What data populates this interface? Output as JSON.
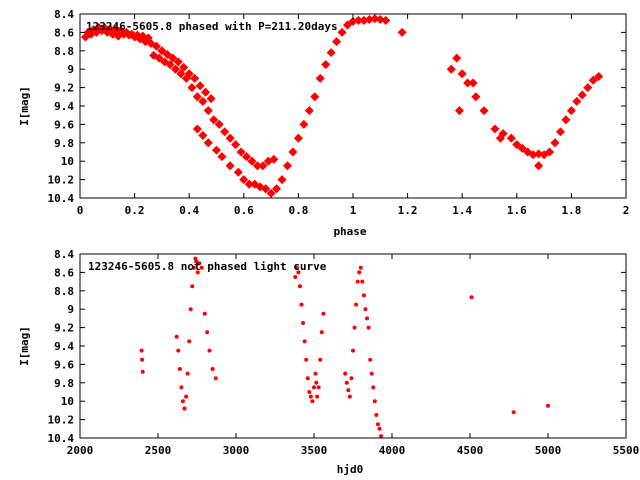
{
  "chart_data": [
    {
      "type": "scatter",
      "title": "123246-5605.8 phased with P=211.20days",
      "xlabel": "phase",
      "ylabel": "I[mag]",
      "xlim": [
        0,
        2
      ],
      "ylim": [
        10.4,
        8.4
      ],
      "y_inverted": true,
      "x_ticks": [
        0,
        0.2,
        0.4,
        0.6,
        0.8,
        1,
        1.2,
        1.4,
        1.6,
        1.8,
        2
      ],
      "x_tick_labels": [
        "0",
        "0.2",
        "0.4",
        "0.6",
        "0.8",
        "1",
        "1.2",
        "1.4",
        "1.6",
        "1.8",
        "2"
      ],
      "y_ticks": [
        8.4,
        8.6,
        8.8,
        9,
        9.2,
        9.4,
        9.6,
        9.8,
        10,
        10.2,
        10.4
      ],
      "y_tick_labels": [
        "8.4",
        "8.6",
        "8.8",
        "9",
        "9.2",
        "9.4",
        "9.6",
        "9.8",
        "10",
        "10.2",
        "10.4"
      ],
      "marker_color": "#ff0000",
      "series": [
        {
          "x": [
            0.02,
            0.03,
            0.05,
            0.07,
            0.09,
            0.11,
            0.13,
            0.15,
            0.17,
            0.19,
            0.21,
            0.23,
            0.25,
            0.04,
            0.06,
            0.08,
            0.1,
            0.12,
            0.14,
            0.16,
            0.18,
            0.2,
            0.22,
            0.24,
            0.26,
            0.28,
            0.3,
            0.32,
            0.34,
            0.36,
            0.38,
            0.4,
            0.42,
            0.44,
            0.46,
            0.48,
            0.27,
            0.29,
            0.31,
            0.33,
            0.35,
            0.37,
            0.39,
            0.41,
            0.43,
            0.45,
            0.47,
            0.49,
            0.51,
            0.53,
            0.55,
            0.57,
            0.59,
            0.61,
            0.63,
            0.65,
            0.67,
            0.69,
            0.71,
            0.43,
            0.45,
            0.47,
            0.5,
            0.52,
            0.55,
            0.58,
            0.6,
            0.62,
            0.64,
            0.66,
            0.68,
            0.7,
            0.72,
            0.74,
            0.76,
            0.78,
            0.8,
            0.82,
            0.84,
            0.86,
            0.88,
            0.9,
            0.92,
            0.94,
            0.96,
            0.98,
            1.0,
            1.02,
            1.04,
            1.06,
            1.08,
            1.1,
            1.12,
            1.18,
            1.36,
            1.38,
            1.4,
            1.42,
            1.45,
            1.48,
            1.52,
            1.55,
            1.58,
            1.6,
            1.62,
            1.64,
            1.66,
            1.68,
            1.7,
            1.72,
            1.74,
            1.76,
            1.78,
            1.8,
            1.82,
            1.84,
            1.86,
            1.88,
            1.9,
            1.39,
            1.44,
            1.54,
            1.68
          ],
          "y": [
            8.65,
            8.6,
            8.57,
            8.55,
            8.55,
            8.56,
            8.57,
            8.58,
            8.6,
            8.62,
            8.63,
            8.64,
            8.66,
            8.62,
            8.6,
            8.58,
            8.6,
            8.62,
            8.64,
            8.62,
            8.63,
            8.65,
            8.67,
            8.7,
            8.72,
            8.75,
            8.8,
            8.84,
            8.88,
            8.92,
            8.98,
            9.05,
            9.1,
            9.18,
            9.25,
            9.32,
            8.85,
            8.88,
            8.92,
            8.95,
            9.0,
            9.05,
            9.1,
            9.2,
            9.3,
            9.35,
            9.45,
            9.55,
            9.6,
            9.68,
            9.75,
            9.82,
            9.9,
            9.95,
            10.0,
            10.05,
            10.05,
            10.0,
            9.98,
            9.65,
            9.72,
            9.8,
            9.88,
            9.95,
            10.05,
            10.12,
            10.2,
            10.25,
            10.25,
            10.28,
            10.3,
            10.35,
            10.3,
            10.2,
            10.05,
            9.9,
            9.75,
            9.6,
            9.45,
            9.3,
            9.1,
            8.95,
            8.82,
            8.7,
            8.6,
            8.52,
            8.48,
            8.47,
            8.47,
            8.46,
            8.45,
            8.46,
            8.47,
            8.6,
            9.0,
            8.88,
            9.05,
            9.15,
            9.3,
            9.45,
            9.65,
            9.7,
            9.75,
            9.82,
            9.86,
            9.9,
            9.93,
            9.92,
            9.93,
            9.9,
            9.8,
            9.68,
            9.55,
            9.45,
            9.35,
            9.28,
            9.2,
            9.12,
            9.08,
            9.45,
            9.15,
            9.75,
            10.05
          ]
        }
      ]
    },
    {
      "type": "scatter",
      "title": "123246-5605.8 not phased light curve",
      "xlabel": "hjd0",
      "ylabel": "I[mag]",
      "xlim": [
        2000,
        5500
      ],
      "ylim": [
        10.4,
        8.4
      ],
      "y_inverted": true,
      "x_ticks": [
        2000,
        2500,
        3000,
        3500,
        4000,
        4500,
        5000,
        5500
      ],
      "x_tick_labels": [
        "2000",
        "2500",
        "3000",
        "3500",
        "4000",
        "4500",
        "5000",
        "5500"
      ],
      "y_ticks": [
        8.4,
        8.6,
        8.8,
        9,
        9.2,
        9.4,
        9.6,
        9.8,
        10,
        10.2,
        10.4
      ],
      "y_tick_labels": [
        "8.4",
        "8.6",
        "8.8",
        "9",
        "9.2",
        "9.4",
        "9.6",
        "9.8",
        "10",
        "10.2",
        "10.4"
      ],
      "marker_color": "#ff0000",
      "series": [
        {
          "x": [
            2395,
            2398,
            2402,
            2620,
            2630,
            2640,
            2650,
            2660,
            2670,
            2680,
            2690,
            2700,
            2710,
            2720,
            2730,
            2740,
            2745,
            2755,
            2765,
            2780,
            2800,
            2815,
            2830,
            2850,
            2870,
            3380,
            3390,
            3400,
            3410,
            3420,
            3430,
            3440,
            3450,
            3460,
            3470,
            3480,
            3490,
            3500,
            3510,
            3515,
            3520,
            3530,
            3540,
            3550,
            3560,
            3700,
            3710,
            3720,
            3730,
            3740,
            3750,
            3760,
            3770,
            3780,
            3790,
            3800,
            3810,
            3820,
            3830,
            3840,
            3850,
            3860,
            3870,
            3880,
            3890,
            3900,
            3910,
            3920,
            3930,
            4510,
            4780,
            5000
          ],
          "y": [
            9.45,
            9.55,
            9.68,
            9.3,
            9.45,
            9.65,
            9.85,
            10.0,
            10.08,
            9.95,
            9.7,
            9.35,
            9.0,
            8.75,
            8.55,
            8.45,
            8.48,
            8.6,
            8.5,
            8.55,
            9.05,
            9.25,
            9.45,
            9.65,
            9.75,
            8.65,
            8.55,
            8.6,
            8.75,
            8.95,
            9.15,
            9.35,
            9.55,
            9.75,
            9.9,
            9.95,
            10.0,
            9.85,
            9.7,
            9.8,
            9.95,
            9.85,
            9.55,
            9.25,
            9.05,
            9.7,
            9.8,
            9.88,
            9.95,
            9.75,
            9.45,
            9.2,
            8.95,
            8.7,
            8.6,
            8.55,
            8.7,
            8.85,
            9.0,
            9.1,
            9.2,
            9.55,
            9.7,
            9.85,
            10.0,
            10.15,
            10.25,
            10.3,
            10.38,
            8.87,
            10.12,
            10.05
          ]
        }
      ]
    }
  ]
}
